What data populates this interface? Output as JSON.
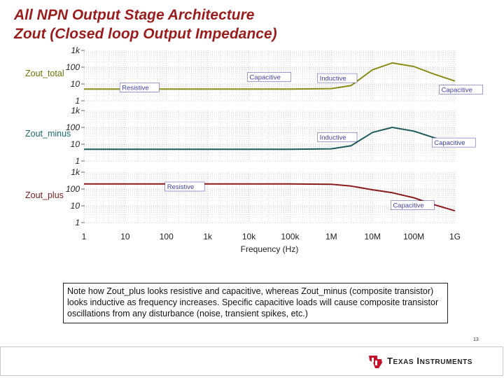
{
  "slide": {
    "title_line1": "All NPN Output Stage Architecture",
    "title_line2": "Zout (Closed loop Output Impedance)",
    "note": "Note how Zout_plus looks resistive and capacitive, whereas Zout_minus (composite transistor) looks inductive as frequency increases.  Specific capacitive loads will cause composite transistor oscillations from any disturbance (noise, transient spikes, etc.)",
    "page_number": "13",
    "brand_name_part1": "Texas",
    "brand_name_part2": "Instruments"
  },
  "colors": {
    "olive": "#8a8c14",
    "teal": "#1d5a5a",
    "maroon": "#8b1a1a",
    "title": "#9b1c1c",
    "label_olive": "#707000",
    "label_teal": "#1d6a6a",
    "label_maroon": "#7a1a1a",
    "grid": "#c9c9c9",
    "annotation": "#4040a0",
    "logo_red": "#c8102e"
  },
  "chart_data": {
    "type": "line",
    "x_scale": "log",
    "xlabel": "Frequency (Hz)",
    "x_range": [
      1,
      1000000000
    ],
    "x_ticks": [
      {
        "value": 1,
        "label": "1"
      },
      {
        "value": 10,
        "label": "10"
      },
      {
        "value": 100,
        "label": "100"
      },
      {
        "value": 1000,
        "label": "1k"
      },
      {
        "value": 10000,
        "label": "10k"
      },
      {
        "value": 100000,
        "label": "100k"
      },
      {
        "value": 1000000,
        "label": "1M"
      },
      {
        "value": 10000000,
        "label": "10M"
      },
      {
        "value": 100000000,
        "label": "100M"
      },
      {
        "value": 1000000000,
        "label": "1G"
      }
    ],
    "grid": true,
    "panels": [
      {
        "label": "Zout_total",
        "color_key": "olive",
        "label_color_key": "label_olive",
        "y_scale": "log",
        "y_range": [
          1,
          1000
        ],
        "y_ticks": [
          {
            "value": 1000,
            "label": "1k"
          },
          {
            "value": 100,
            "label": "100"
          },
          {
            "value": 10,
            "label": "10"
          },
          {
            "value": 1,
            "label": "1"
          }
        ],
        "series": {
          "x": [
            1,
            1000,
            100000,
            1000000,
            3000000,
            10000000,
            30000000,
            100000000,
            300000000,
            1000000000
          ],
          "y": [
            5,
            5,
            5,
            5.3,
            8,
            70,
            180,
            110,
            40,
            15
          ]
        },
        "annotations": [
          {
            "text": "Resistive",
            "x": 8,
            "y": 4.5
          },
          {
            "text": "Capacitive",
            "x": 10000,
            "y": 19
          },
          {
            "text": "Inductive",
            "x": 500000,
            "y": 16
          },
          {
            "text": "Capacitive",
            "x": 450000000,
            "y": 3.3
          }
        ]
      },
      {
        "label": "Zout_minus",
        "color_key": "teal",
        "label_color_key": "label_teal",
        "y_scale": "log",
        "y_range": [
          1,
          1000
        ],
        "y_ticks": [
          {
            "value": 1000,
            "label": "1k"
          },
          {
            "value": 100,
            "label": "100"
          },
          {
            "value": 10,
            "label": "10"
          },
          {
            "value": 1,
            "label": "1"
          }
        ],
        "series": {
          "x": [
            1,
            1000,
            100000,
            1000000,
            3000000,
            10000000,
            30000000,
            100000000,
            300000000,
            1000000000
          ],
          "y": [
            5,
            5,
            5,
            5.3,
            8,
            50,
            100,
            60,
            25,
            10
          ]
        },
        "annotations": [
          {
            "text": "Inductive",
            "x": 500000,
            "y": 19
          },
          {
            "text": "Capacitive",
            "x": 300000000,
            "y": 9
          }
        ]
      },
      {
        "label": "Zout_plus",
        "color_key": "maroon",
        "label_color_key": "label_maroon",
        "y_scale": "log",
        "y_range": [
          1,
          1000
        ],
        "y_ticks": [
          {
            "value": 1000,
            "label": "1k"
          },
          {
            "value": 100,
            "label": "100"
          },
          {
            "value": 10,
            "label": "10"
          },
          {
            "value": 1,
            "label": "1"
          }
        ],
        "series": {
          "x": [
            1,
            1000,
            100000,
            1000000,
            3000000,
            10000000,
            30000000,
            100000000,
            300000000,
            1000000000
          ],
          "y": [
            200,
            200,
            200,
            190,
            150,
            90,
            60,
            30,
            12,
            5
          ]
        },
        "annotations": [
          {
            "text": "Resistive",
            "x": 100,
            "y": 100
          },
          {
            "text": "Capacitive",
            "x": 30000000,
            "y": 7.7
          }
        ]
      }
    ]
  }
}
